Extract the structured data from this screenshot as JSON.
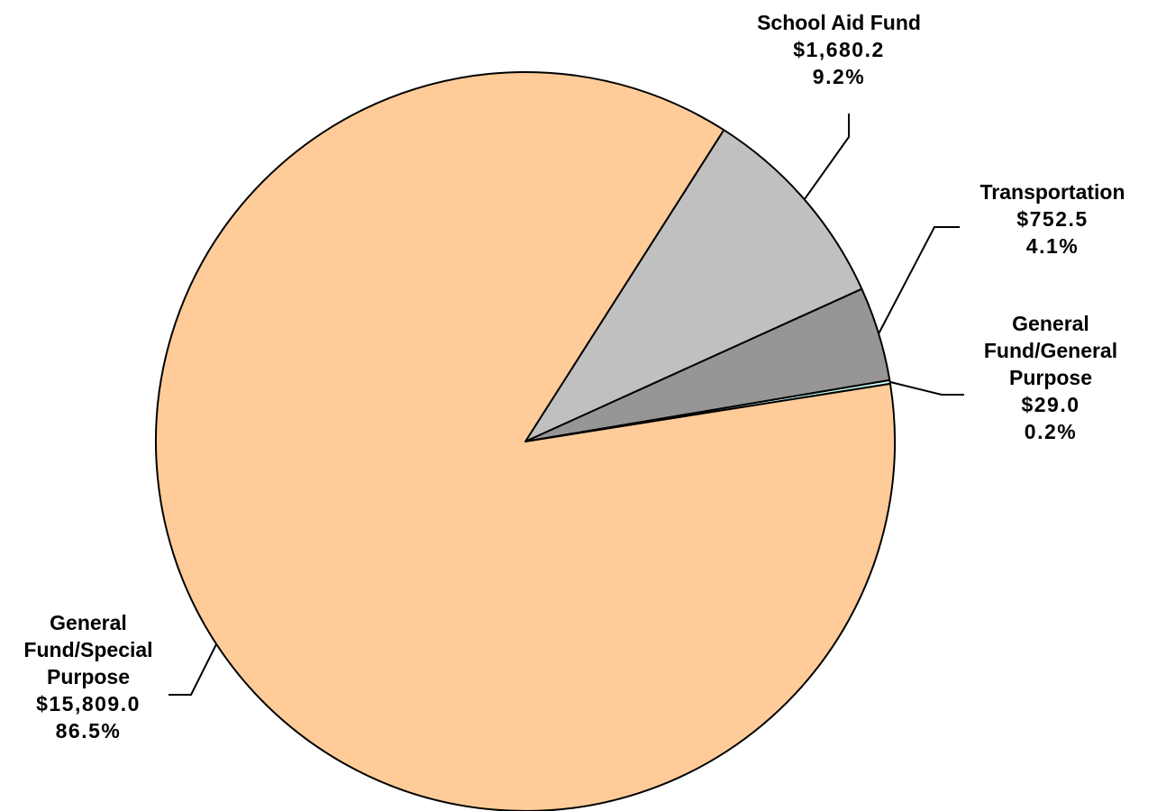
{
  "chart_data": {
    "type": "pie",
    "slices": [
      {
        "name_lines": [
          "School Aid Fund"
        ],
        "value_label": "$1,680.2",
        "percent_label": "9.2%",
        "value": 1680.2,
        "percent": 9.2,
        "color": "#c0c0c0"
      },
      {
        "name_lines": [
          "Transportation"
        ],
        "value_label": "$752.5",
        "percent_label": "4.1%",
        "value": 752.5,
        "percent": 4.1,
        "color": "#969696"
      },
      {
        "name_lines": [
          "General",
          "Fund/General",
          "Purpose"
        ],
        "value_label": "$29.0",
        "percent_label": "0.2%",
        "value": 29.0,
        "percent": 0.2,
        "color": "#ccffff"
      },
      {
        "name_lines": [
          "General",
          "Fund/Special",
          "Purpose"
        ],
        "value_label": "$15,809.0",
        "percent_label": "86.5%",
        "value": 15809.0,
        "percent": 86.5,
        "color": "#ffcc99"
      }
    ]
  }
}
